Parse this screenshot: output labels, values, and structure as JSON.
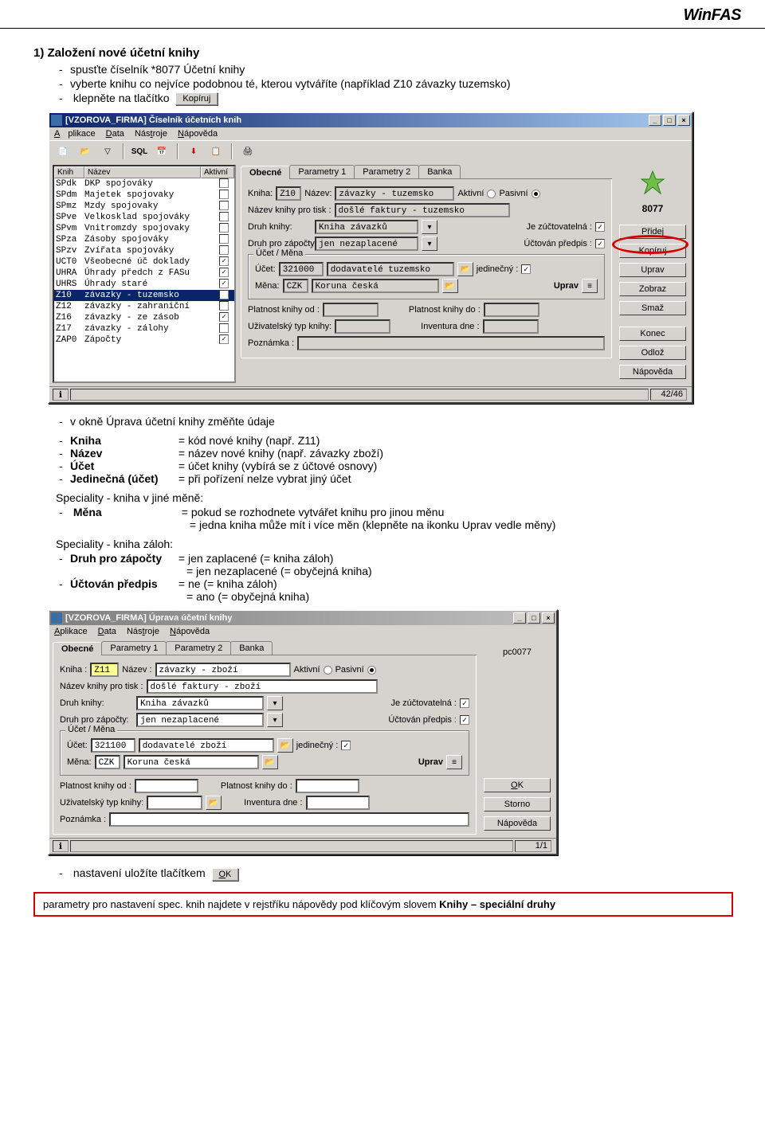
{
  "brand": "WinFAS",
  "section1": {
    "title": "1)  Založení nové účetní knihy",
    "b1": "spusťte číselník *8077 Účetní knihy",
    "b2": "vyberte knihu co nejvíce podobnou té, kterou vytváříte (například Z10 závazky tuzemsko)",
    "b3": "klepněte na tlačítko",
    "btn_copy": "Kopíruj"
  },
  "win1": {
    "title": "[VZOROVA_FIRMA] Číselník účetních knih",
    "menu": {
      "app": "Aplikace",
      "data": "Data",
      "tools": "Nástroje",
      "help": "Nápověda"
    },
    "list_head": {
      "c1": "Knih",
      "c2": "Název",
      "c3": "Aktivní"
    },
    "rows": [
      {
        "c1": "SPdk",
        "c2": "DKP spojováky",
        "chk": false
      },
      {
        "c1": "SPdm",
        "c2": "Majetek spojovaky",
        "chk": false
      },
      {
        "c1": "SPmz",
        "c2": "Mzdy spojovaky",
        "chk": false
      },
      {
        "c1": "SPve",
        "c2": "Velkosklad spojováky",
        "chk": false
      },
      {
        "c1": "SPvm",
        "c2": "Vnitromzdy spojovaky",
        "chk": false
      },
      {
        "c1": "SPza",
        "c2": "Zásoby spojováky",
        "chk": false
      },
      {
        "c1": "SPzv",
        "c2": "Zvířata spojováky",
        "chk": false
      },
      {
        "c1": "UCT0",
        "c2": "Všeobecné úč doklady",
        "chk": true
      },
      {
        "c1": "UHRA",
        "c2": "Úhrady předch z FASu",
        "chk": true
      },
      {
        "c1": "UHRS",
        "c2": "Úhrady staré",
        "chk": true
      },
      {
        "c1": "Z10",
        "c2": "závazky - tuzemsko",
        "chk": true,
        "sel": true
      },
      {
        "c1": "Z12",
        "c2": "závazky  - zahraniční",
        "chk": false
      },
      {
        "c1": "Z16",
        "c2": "závazky - ze zásob",
        "chk": true
      },
      {
        "c1": "Z17",
        "c2": "závazky - zálohy",
        "chk": false
      },
      {
        "c1": "ZAP0",
        "c2": "Zápočty",
        "chk": true
      }
    ],
    "tabs": [
      "Obecné",
      "Parametry 1",
      "Parametry 2",
      "Banka"
    ],
    "form": {
      "kniha_l": "Kniha:",
      "kniha": "Z10",
      "nazev_l": "Název:",
      "nazev": "závazky - tuzemsko",
      "aktivni": "Aktivní",
      "pasivni": "Pasivní",
      "tisk_l": "Název knihy pro tisk :",
      "tisk": "došlé faktury - tuzemsko",
      "druh_l": "Druh knihy:",
      "druh": "Kniha závazků",
      "zuct_l": "Je zúčtovatelná :",
      "zapocty_l": "Druh pro zápočty:",
      "zapocty": "jen nezaplacené",
      "predpis_l": "Účtován předpis :",
      "grp": "Účet / Měna",
      "ucet_l": "Účet:",
      "ucet": "321000",
      "ucet_n": "dodavatelé tuzemsko",
      "jedin_l": "jedinečný :",
      "mena_l": "Měna:",
      "mena": "CZK",
      "mena_n": "Koruna česká",
      "uprav": "Uprav",
      "plat_od": "Platnost knihy od :",
      "plat_do": "Platnost knihy do :",
      "uziv_l": "Uživatelský typ knihy:",
      "inv_l": "Inventura dne :",
      "pozn_l": "Poznámka :"
    },
    "code": "8077",
    "buttons": [
      "Přidej",
      "Kopíruj",
      "Uprav",
      "Zobraz",
      "Smaž",
      "Konec",
      "Odlož",
      "Nápověda"
    ],
    "status": "42/46"
  },
  "text2": {
    "lead": "v okně Úprava účetní knihy změňte údaje",
    "rows": [
      {
        "k": "Kniha",
        "v": "= kód nové knihy (např. Z11)"
      },
      {
        "k": "Název",
        "v": "= název nové knihy (např. závazky zboží)"
      },
      {
        "k": "Účet",
        "v": "= účet knihy (vybírá se z účtové osnovy)"
      },
      {
        "k": "Jedinečná (účet)",
        "v": "= při pořízení nelze vybrat jiný účet"
      }
    ],
    "spec1": "Speciality - kniha v jiné měně:",
    "mena_k": "Měna",
    "mena_v1": "= pokud se rozhodnete vytvářet knihu pro jinou měnu",
    "mena_v2": "= jedna kniha může mít i více měn (klepněte na ikonku Uprav vedle měny)",
    "spec2": "Speciality - kniha záloh:",
    "rows2": [
      {
        "k": "Druh pro zápočty",
        "v1": "= jen zaplacené (= kniha záloh)",
        "v2": "= jen nezaplacené (= obyčejná kniha)"
      },
      {
        "k": "Účtován předpis",
        "v1": "= ne (= kniha záloh)",
        "v2": "= ano (= obyčejná kniha)"
      }
    ]
  },
  "win2": {
    "title": "[VZOROVA_FIRMA] Úprava účetní knihy",
    "menu": {
      "app": "Aplikace",
      "data": "Data",
      "tools": "Nástroje",
      "help": "Nápověda"
    },
    "tabs": [
      "Obecné",
      "Parametry 1",
      "Parametry 2",
      "Banka"
    ],
    "pc": "pc0077",
    "form": {
      "kniha_l": "Kniha :",
      "kniha": "Z11",
      "nazev_l": "Název :",
      "nazev": "závazky - zboží",
      "aktivni": "Aktivní",
      "pasivni": "Pasivní",
      "tisk_l": "Název knihy pro tisk :",
      "tisk": "došlé faktury - zboží",
      "druh_l": "Druh knihy:",
      "druh": "Kniha závazků",
      "zuct_l": "Je zúčtovatelná :",
      "zapocty_l": "Druh pro zápočty:",
      "zapocty": "jen nezaplacené",
      "predpis_l": "Účtován předpis :",
      "grp": "Účet / Měna",
      "ucet_l": "Účet:",
      "ucet": "321100",
      "ucet_n": "dodavatelé zboží",
      "jedin_l": "jedinečný :",
      "mena_l": "Měna:",
      "mena": "CZK",
      "mena_n": "Koruna česká",
      "uprav": "Uprav",
      "plat_od": "Platnost knihy od :",
      "plat_do": "Platnost knihy do :",
      "uziv_l": "Uživatelský typ knihy:",
      "inv_l": "Inventura dne :",
      "pozn_l": "Poznámka :"
    },
    "buttons": [
      "OK",
      "Storno",
      "Nápověda"
    ],
    "status": "1/1"
  },
  "tail": {
    "save": "nastavení uložíte tlačítkem",
    "ok_btn": "OK"
  },
  "note": "parametry pro nastavení spec. knih najdete v rejstříku nápovědy pod klíčovým slovem ",
  "note_b": "Knihy – speciální druhy"
}
